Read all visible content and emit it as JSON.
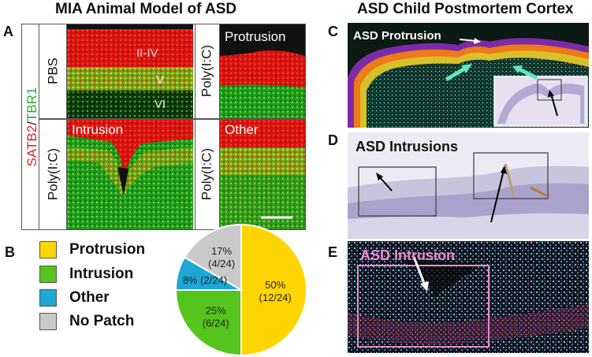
{
  "titles": {
    "left": "MIA Animal Model of ASD",
    "right": "ASD Child Postmortem Cortex"
  },
  "panel_letters": [
    "A",
    "B",
    "C",
    "D",
    "E"
  ],
  "panel_a": {
    "side_label_red": "SATB2",
    "side_label_sep": "/",
    "side_label_green": "TBR1",
    "row_labels": [
      "PBS",
      "Poly(I:C)"
    ],
    "col2_labels": [
      "Poly(I:C)",
      "Poly(I:C)"
    ],
    "layer_labels": [
      "II-IV",
      "V",
      "VI"
    ],
    "cell_titles": {
      "protrusion": "Protrusion",
      "intrusion": "Intrusion",
      "other": "Other"
    }
  },
  "panel_b": {
    "legend": [
      {
        "label": "Protrusion",
        "color": "#ffd500"
      },
      {
        "label": "Intrusion",
        "color": "#55c41c"
      },
      {
        "label": "Other",
        "color": "#1ca7d6"
      },
      {
        "label": "No Patch",
        "color": "#c9c9c9"
      }
    ]
  },
  "chart_data": {
    "type": "pie",
    "slices": [
      {
        "label": "Protrusion",
        "value": 12,
        "percent_text": "50%",
        "count_text": "(12/24)",
        "color": "#ffd500"
      },
      {
        "label": "Intrusion",
        "value": 6,
        "percent_text": "25%",
        "count_text": "(6/24)",
        "color": "#55c41c"
      },
      {
        "label": "Other",
        "value": 2,
        "percent_text": "8%",
        "count_text": "(2/24)",
        "color": "#1ca7d6"
      },
      {
        "label": "No Patch",
        "value": 4,
        "percent_text": "17%",
        "count_text": "(4/24)",
        "color": "#c9c9c9"
      }
    ],
    "total": 24
  },
  "panel_c": {
    "label": "ASD Protrusion"
  },
  "panel_d": {
    "label": "ASD Intrusions"
  },
  "panel_e": {
    "label": "ASD Intrusion"
  }
}
